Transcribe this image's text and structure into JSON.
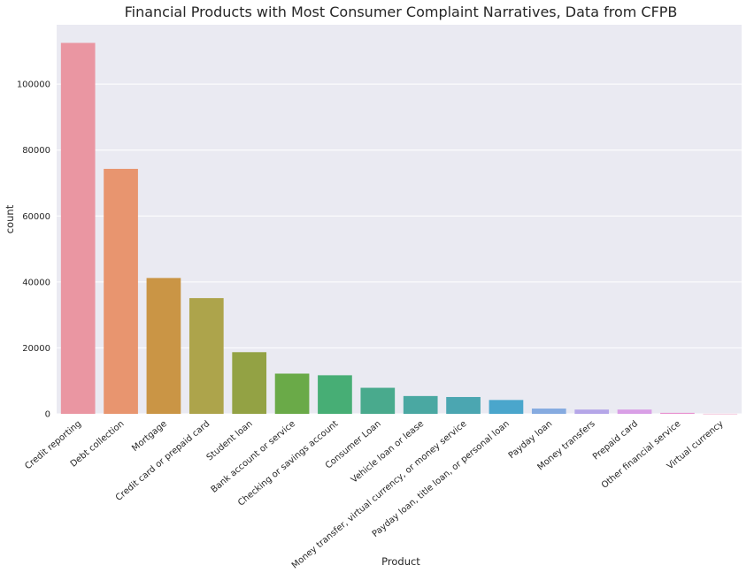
{
  "chart_data": {
    "type": "bar",
    "title": "Financial Products with Most Consumer Complaint Narratives, Data from CFPB",
    "xlabel": "Product",
    "ylabel": "count",
    "categories": [
      "Credit reporting",
      "Debt collection",
      "Mortgage",
      "Credit card or prepaid card",
      "Student loan",
      "Bank account or service",
      "Checking or savings account",
      "Consumer Loan",
      "Vehicle loan or lease",
      "Money transfer, virtual currency, or money service",
      "Payday loan, title loan, or personal loan",
      "Payday loan",
      "Money transfers",
      "Prepaid card",
      "Other financial service",
      "Virtual currency"
    ],
    "values": [
      112500,
      74300,
      41200,
      35100,
      18700,
      12200,
      11700,
      7900,
      5400,
      5100,
      4200,
      1600,
      1300,
      1300,
      300,
      20
    ],
    "colors": [
      "#ea96a2",
      "#e8956f",
      "#ca9545",
      "#ada44b",
      "#93a244",
      "#6aaa48",
      "#47ae75",
      "#49aa8d",
      "#4aa8a2",
      "#4ba6b1",
      "#4aa6cc",
      "#86abe0",
      "#b5a6e8",
      "#d99fe6",
      "#e891d0",
      "#ea97bb"
    ],
    "yticks": [
      "0",
      "20000",
      "40000",
      "60000",
      "80000",
      "100000"
    ],
    "ylim": [
      0,
      118000
    ],
    "grid": true,
    "background_color": "#eaeaf2",
    "grid_color": "#ffffff"
  }
}
